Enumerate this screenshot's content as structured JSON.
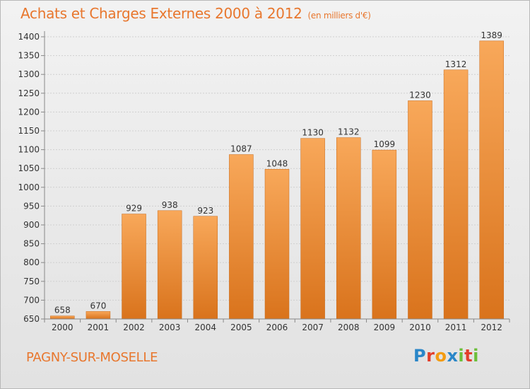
{
  "header": {
    "title": "Achats et Charges Externes 2000 à 2012",
    "unit": "(en milliers d'€)"
  },
  "footer": {
    "commune": "PAGNY-SUR-MOSELLE",
    "logo": {
      "letters": [
        "P",
        "r",
        "o",
        "x",
        "i",
        "t",
        "i"
      ]
    }
  },
  "colors": {
    "title": "#e8772e",
    "bar_top": "#f8a85a",
    "bar_bottom": "#d9731c",
    "logo_letters": [
      "#2a86c8",
      "#e23f2b",
      "#f39c12",
      "#2a86c8",
      "#6cbf3a",
      "#e23f2b",
      "#6cbf3a"
    ]
  },
  "chart_data": {
    "type": "bar",
    "title": "Achats et Charges Externes 2000 à 2012",
    "subtitle": "(en milliers d'€)",
    "xlabel": "",
    "ylabel": "",
    "categories": [
      "2000",
      "2001",
      "2002",
      "2003",
      "2004",
      "2005",
      "2006",
      "2007",
      "2008",
      "2009",
      "2010",
      "2011",
      "2012"
    ],
    "values": [
      658,
      670,
      929,
      938,
      923,
      1087,
      1048,
      1130,
      1132,
      1099,
      1230,
      1312,
      1389
    ],
    "ylim": [
      650,
      1400
    ],
    "yticks": [
      650,
      700,
      750,
      800,
      850,
      900,
      950,
      1000,
      1050,
      1100,
      1150,
      1200,
      1250,
      1300,
      1350,
      1400
    ],
    "grid": true,
    "legend": "none"
  }
}
